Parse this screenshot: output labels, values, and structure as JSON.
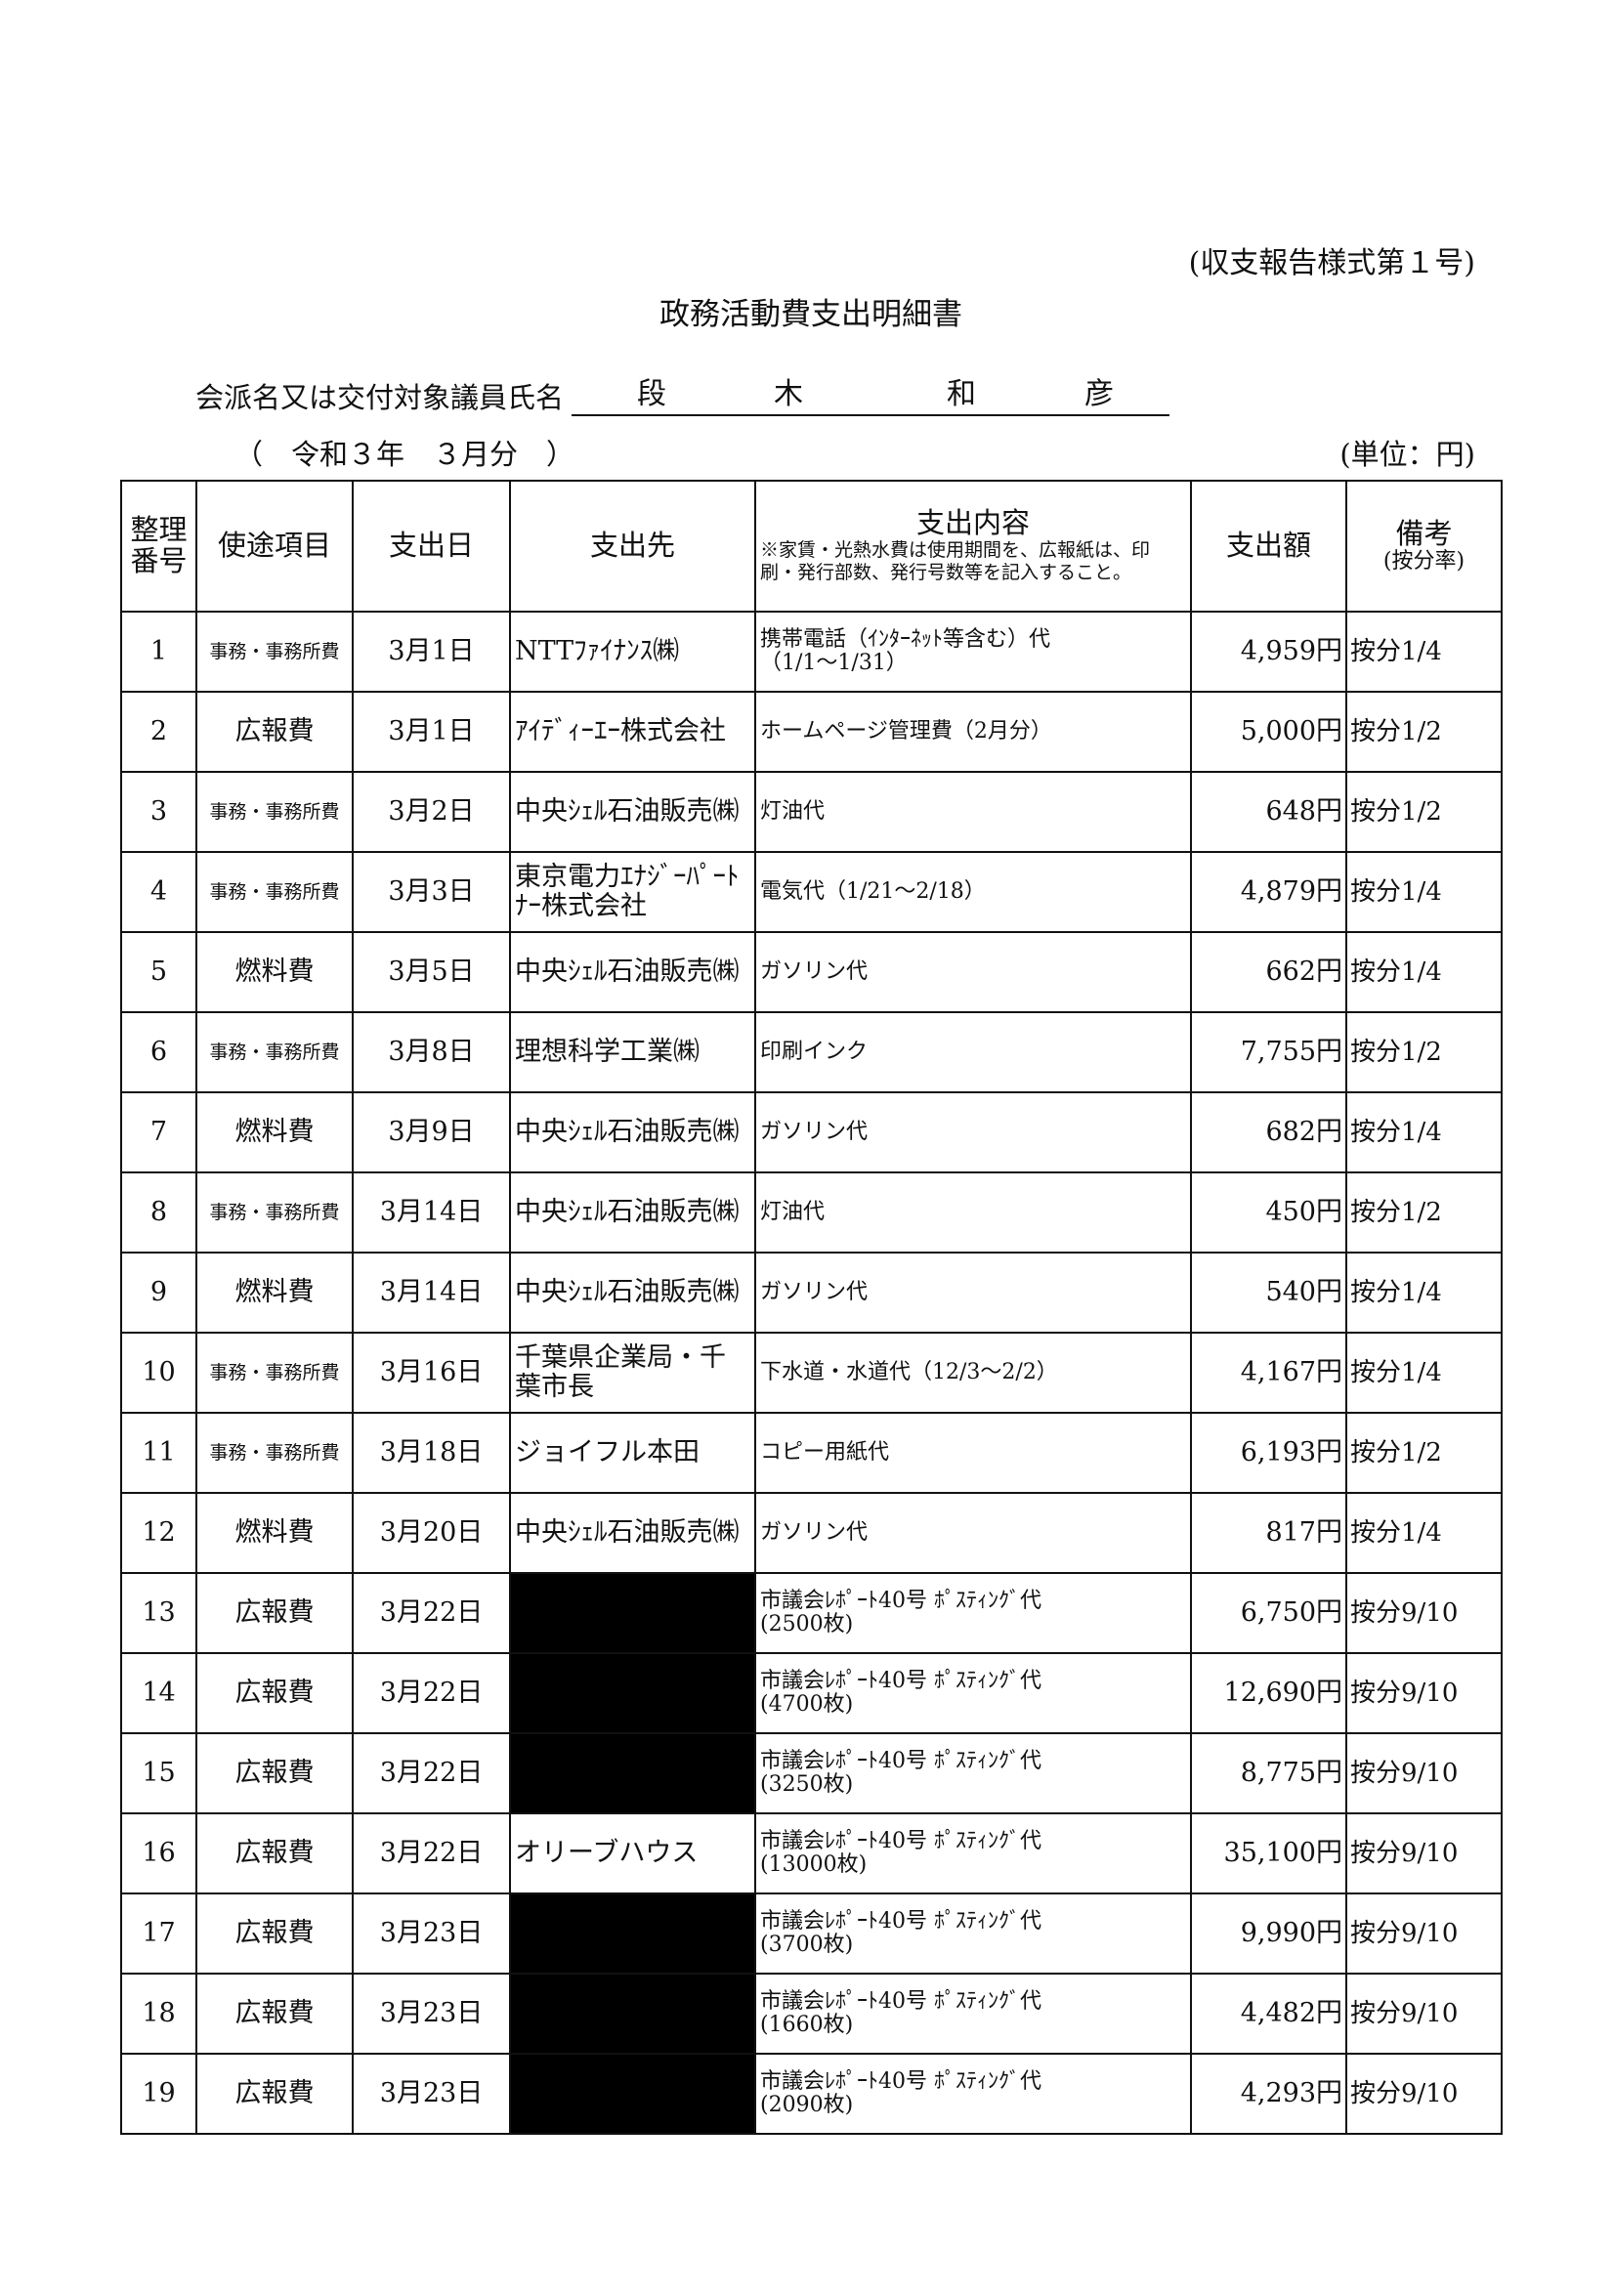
{
  "form_number": "(収支報告様式第１号)",
  "title": "政務活動費支出明細書",
  "member": {
    "label": "会派名又は交付対象議員氏名",
    "name_chars": [
      "段",
      "木",
      "和",
      "彦"
    ]
  },
  "period": "（　令和３年　３月分　）",
  "unit": "(単位：円)",
  "table": {
    "headers": {
      "no": "整理番号",
      "category": "使途項目",
      "date": "支出日",
      "vendor": "支出先",
      "content": "支出内容",
      "content_note": "※家賃・光熱水費は使用期間を、広報紙は、印刷・発行部数、発行号数等を記入すること。",
      "amount": "支出額",
      "remarks": "備考",
      "remarks_sub": "(按分率)"
    },
    "rows": [
      {
        "no": "1",
        "category": "事務・事務所費",
        "date": "3月1日",
        "vendor": "NTTﾌｧｲﾅﾝｽ㈱",
        "redacted": false,
        "content": "携帯電話（ｲﾝﾀｰﾈｯﾄ等含む）代",
        "content2": "（1/1～1/31）",
        "amount": "4,959円",
        "remarks": "按分1/4"
      },
      {
        "no": "2",
        "category": "広報費",
        "date": "3月1日",
        "vendor": "ｱｲﾃﾞｨｰｴｰ株式会社",
        "redacted": false,
        "content": "ホームページ管理費（2月分）",
        "content2": "",
        "amount": "5,000円",
        "remarks": "按分1/2"
      },
      {
        "no": "3",
        "category": "事務・事務所費",
        "date": "3月2日",
        "vendor": "中央ｼｪﾙ石油販売㈱",
        "redacted": false,
        "content": "灯油代",
        "content2": "",
        "amount": "648円",
        "remarks": "按分1/2"
      },
      {
        "no": "4",
        "category": "事務・事務所費",
        "date": "3月3日",
        "vendor": "東京電力ｴﾅｼﾞｰﾊﾟｰﾄﾅｰ株式会社",
        "redacted": false,
        "content": "電気代（1/21～2/18）",
        "content2": "",
        "amount": "4,879円",
        "remarks": "按分1/4"
      },
      {
        "no": "5",
        "category": "燃料費",
        "date": "3月5日",
        "vendor": "中央ｼｪﾙ石油販売㈱",
        "redacted": false,
        "content": "ガソリン代",
        "content2": "",
        "amount": "662円",
        "remarks": "按分1/4"
      },
      {
        "no": "6",
        "category": "事務・事務所費",
        "date": "3月8日",
        "vendor": "理想科学工業㈱",
        "redacted": false,
        "content": "印刷インク",
        "content2": "",
        "amount": "7,755円",
        "remarks": "按分1/2"
      },
      {
        "no": "7",
        "category": "燃料費",
        "date": "3月9日",
        "vendor": "中央ｼｪﾙ石油販売㈱",
        "redacted": false,
        "content": "ガソリン代",
        "content2": "",
        "amount": "682円",
        "remarks": "按分1/4"
      },
      {
        "no": "8",
        "category": "事務・事務所費",
        "date": "3月14日",
        "vendor": "中央ｼｪﾙ石油販売㈱",
        "redacted": false,
        "content": "灯油代",
        "content2": "",
        "amount": "450円",
        "remarks": "按分1/2"
      },
      {
        "no": "9",
        "category": "燃料費",
        "date": "3月14日",
        "vendor": "中央ｼｪﾙ石油販売㈱",
        "redacted": false,
        "content": "ガソリン代",
        "content2": "",
        "amount": "540円",
        "remarks": "按分1/4"
      },
      {
        "no": "10",
        "category": "事務・事務所費",
        "date": "3月16日",
        "vendor": "千葉県企業局・千葉市長",
        "redacted": false,
        "content": "下水道・水道代（12/3～2/2）",
        "content2": "",
        "amount": "4,167円",
        "remarks": "按分1/4"
      },
      {
        "no": "11",
        "category": "事務・事務所費",
        "date": "3月18日",
        "vendor": "ジョイフル本田",
        "redacted": false,
        "content": "コピー用紙代",
        "content2": "",
        "amount": "6,193円",
        "remarks": "按分1/2"
      },
      {
        "no": "12",
        "category": "燃料費",
        "date": "3月20日",
        "vendor": "中央ｼｪﾙ石油販売㈱",
        "redacted": false,
        "content": "ガソリン代",
        "content2": "",
        "amount": "817円",
        "remarks": "按分1/4"
      },
      {
        "no": "13",
        "category": "広報費",
        "date": "3月22日",
        "vendor": "",
        "redacted": true,
        "content": "市議会ﾚﾎﾟｰﾄ40号 ﾎﾟｽﾃｨﾝｸﾞ代",
        "content2": "(2500枚)",
        "amount": "6,750円",
        "remarks": "按分9/10"
      },
      {
        "no": "14",
        "category": "広報費",
        "date": "3月22日",
        "vendor": "",
        "redacted": true,
        "content": "市議会ﾚﾎﾟｰﾄ40号 ﾎﾟｽﾃｨﾝｸﾞ代",
        "content2": "(4700枚)",
        "amount": "12,690円",
        "remarks": "按分9/10"
      },
      {
        "no": "15",
        "category": "広報費",
        "date": "3月22日",
        "vendor": "",
        "redacted": true,
        "content": "市議会ﾚﾎﾟｰﾄ40号 ﾎﾟｽﾃｨﾝｸﾞ代",
        "content2": "(3250枚)",
        "amount": "8,775円",
        "remarks": "按分9/10"
      },
      {
        "no": "16",
        "category": "広報費",
        "date": "3月22日",
        "vendor": "オリーブハウス",
        "redacted": false,
        "content": "市議会ﾚﾎﾟｰﾄ40号 ﾎﾟｽﾃｨﾝｸﾞ代",
        "content2": "(13000枚)",
        "amount": "35,100円",
        "remarks": "按分9/10"
      },
      {
        "no": "17",
        "category": "広報費",
        "date": "3月23日",
        "vendor": "",
        "redacted": true,
        "content": "市議会ﾚﾎﾟｰﾄ40号 ﾎﾟｽﾃｨﾝｸﾞ代",
        "content2": "(3700枚)",
        "amount": "9,990円",
        "remarks": "按分9/10"
      },
      {
        "no": "18",
        "category": "広報費",
        "date": "3月23日",
        "vendor": "",
        "redacted": true,
        "content": "市議会ﾚﾎﾟｰﾄ40号 ﾎﾟｽﾃｨﾝｸﾞ代",
        "content2": "(1660枚)",
        "amount": "4,482円",
        "remarks": "按分9/10"
      },
      {
        "no": "19",
        "category": "広報費",
        "date": "3月23日",
        "vendor": "",
        "redacted": true,
        "content": "市議会ﾚﾎﾟｰﾄ40号 ﾎﾟｽﾃｨﾝｸﾞ代",
        "content2": "(2090枚)",
        "amount": "4,293円",
        "remarks": "按分9/10"
      }
    ]
  }
}
